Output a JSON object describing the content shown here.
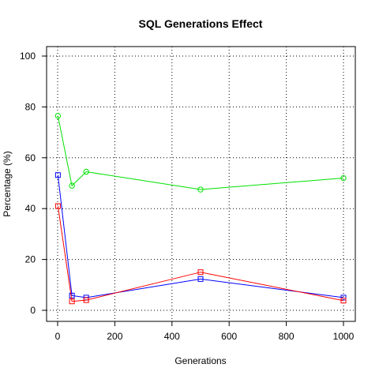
{
  "chart_data": {
    "type": "line",
    "title": "SQL Generations Effect",
    "xlabel": "Generations",
    "ylabel": "Percentage (%)",
    "xlim": [
      0,
      1000
    ],
    "ylim": [
      0,
      100
    ],
    "xticks": [
      0,
      200,
      400,
      600,
      800,
      1000
    ],
    "yticks": [
      0,
      20,
      40,
      60,
      80,
      100
    ],
    "grid": true,
    "x": [
      1,
      50,
      100,
      500,
      1000
    ],
    "series": [
      {
        "color": "#00e000",
        "marker": "circle",
        "values": [
          76.5,
          49.0,
          54.5,
          47.5,
          52.0
        ]
      },
      {
        "color": "#0000ff",
        "marker": "square",
        "values": [
          53.2,
          5.8,
          5.0,
          12.3,
          5.0
        ]
      },
      {
        "color": "#ff0000",
        "marker": "square",
        "values": [
          41.0,
          3.5,
          4.0,
          15.0,
          3.8
        ]
      }
    ]
  }
}
